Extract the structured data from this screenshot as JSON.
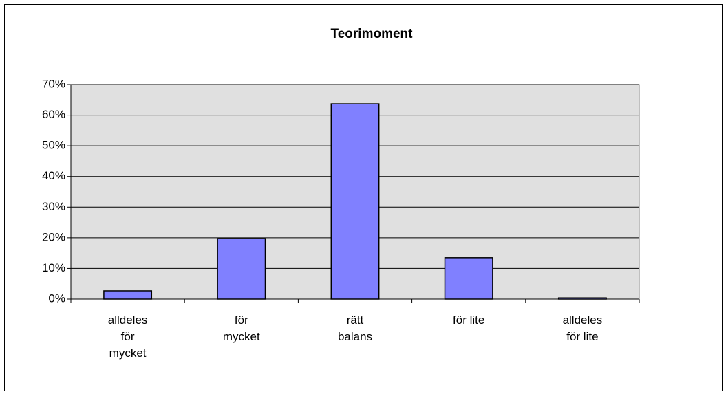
{
  "chart_data": {
    "type": "bar",
    "title": "Teorimoment",
    "categories": [
      "alldeles\nför\nmycket",
      "för\nmycket",
      "rätt\nbalans",
      "för lite",
      "alldeles\nför lite"
    ],
    "values": [
      2.7,
      19.7,
      63.7,
      13.5,
      0.4
    ],
    "color": "#8080ff",
    "ylim": [
      0,
      70
    ],
    "yticks": [
      {
        "value": 0,
        "label": "0%"
      },
      {
        "value": 10,
        "label": "10%"
      },
      {
        "value": 20,
        "label": "20%"
      },
      {
        "value": 30,
        "label": "30%"
      },
      {
        "value": 40,
        "label": "40%"
      },
      {
        "value": 50,
        "label": "50%"
      },
      {
        "value": 60,
        "label": "60%"
      },
      {
        "value": 70,
        "label": "70%"
      }
    ],
    "grid": true
  }
}
